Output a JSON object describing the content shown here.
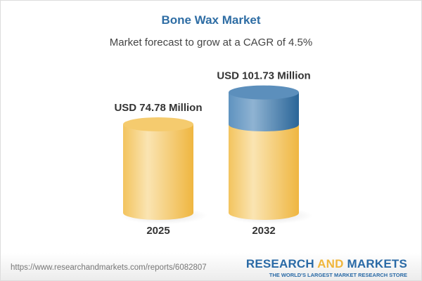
{
  "chart_data": {
    "type": "bar",
    "title": "Bone Wax Market",
    "subtitle": "Market forecast to grow at a CAGR of 4.5%",
    "categories": [
      "2025",
      "2032"
    ],
    "values": [
      74.78,
      101.73
    ],
    "unit": "USD Million",
    "data_labels": [
      "USD 74.78 Million",
      "USD 101.73 Million"
    ],
    "colors": {
      "base": "#f2c25a",
      "growth": "#4a84b5",
      "title": "#2e6da4"
    }
  },
  "footer": {
    "url": "https://www.researchandmarkets.com/reports/6082807",
    "brand_part1": "RESEARCH ",
    "brand_part2": "AND",
    "brand_part3": " MARKETS",
    "brand_tagline": "THE WORLD'S LARGEST MARKET RESEARCH STORE"
  }
}
